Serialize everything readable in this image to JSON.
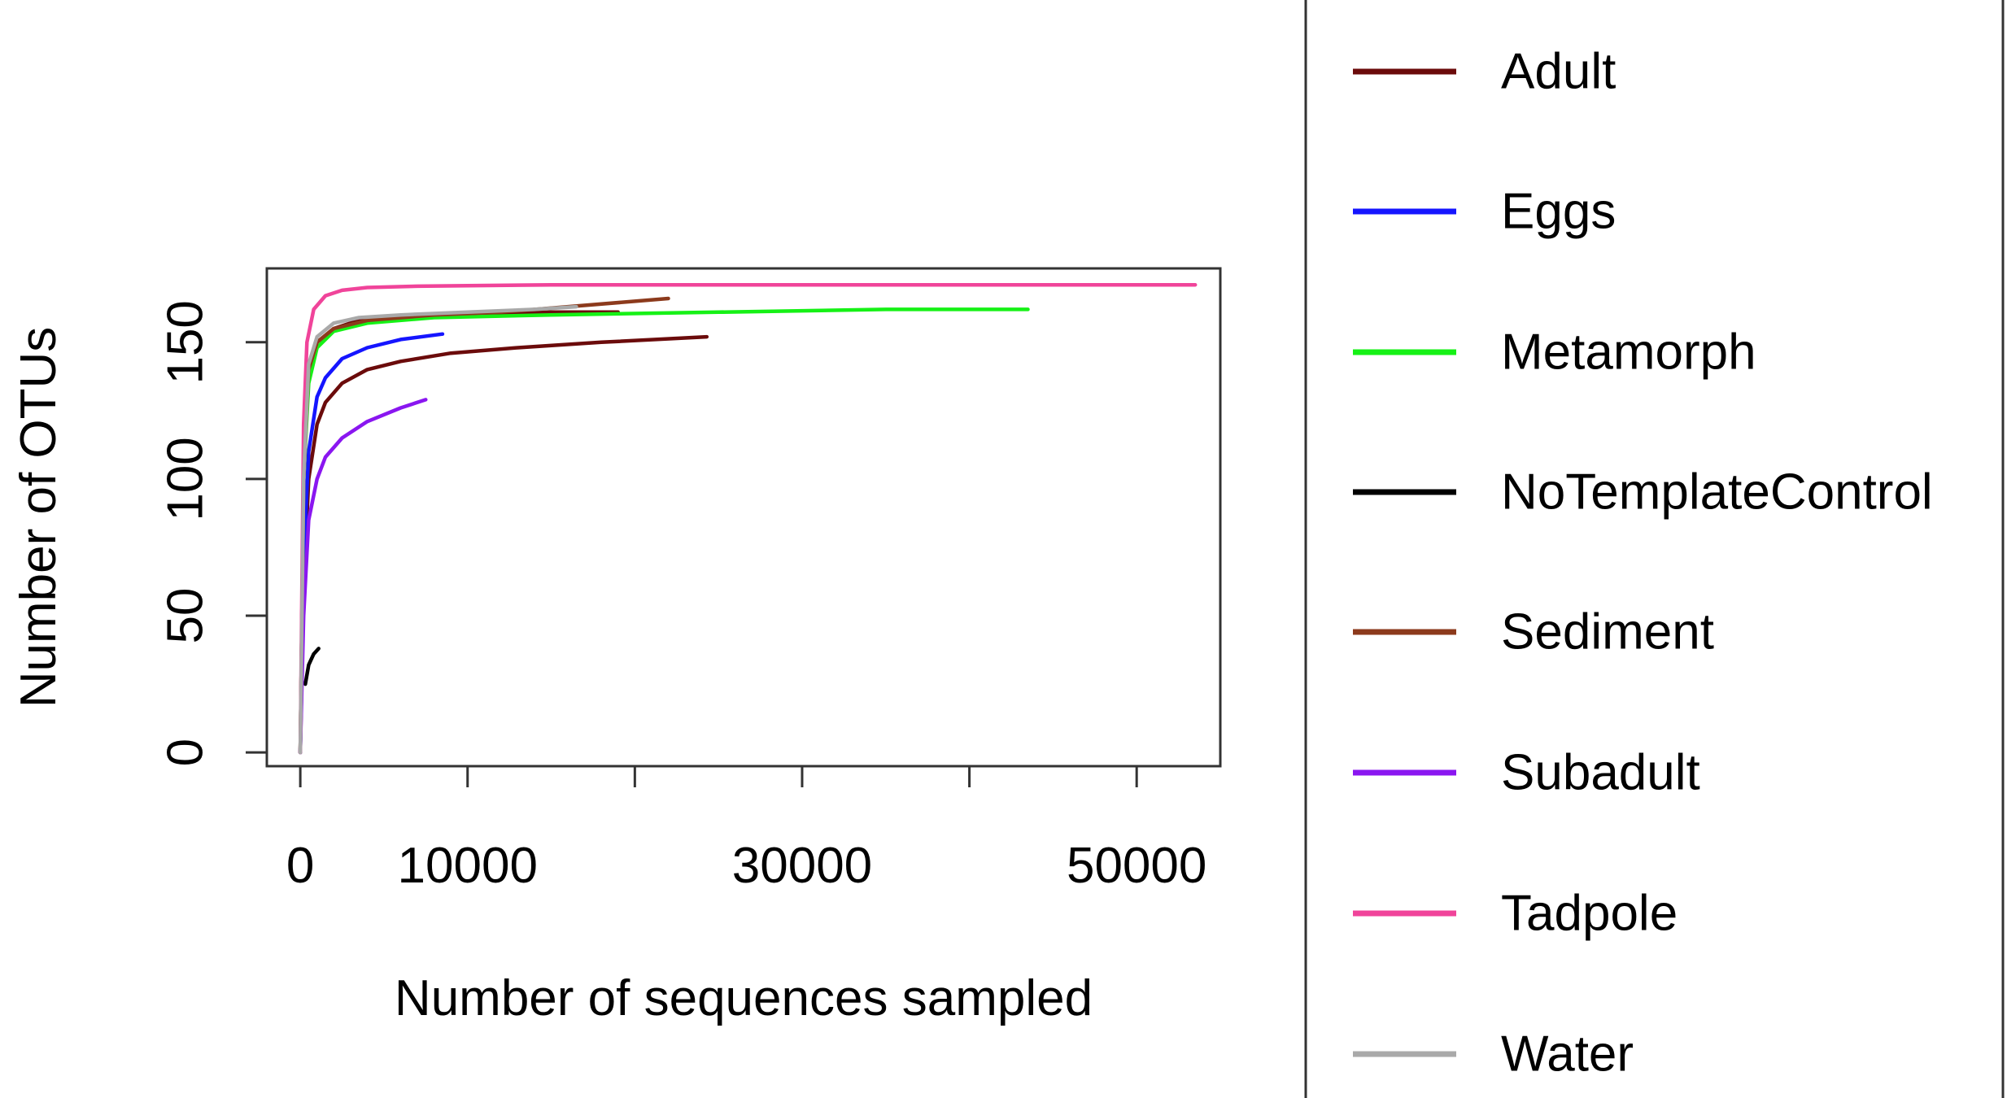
{
  "chart_data": {
    "type": "line",
    "title": "",
    "xlabel": "Number of sequences sampled",
    "ylabel": "Number of OTUs",
    "xlim": [
      -2000,
      55000
    ],
    "ylim": [
      -5,
      177
    ],
    "x_ticks": [
      0,
      10000,
      20000,
      30000,
      40000,
      50000
    ],
    "x_tick_labels": [
      "0",
      "10000",
      "",
      "30000",
      "",
      "50000"
    ],
    "y_ticks": [
      0,
      50,
      100,
      150
    ],
    "y_tick_labels": [
      "0",
      "50",
      "100",
      "150"
    ],
    "grid": false,
    "legend_placement": "right",
    "series": [
      {
        "name": "Adult",
        "color": "#6b0b0b",
        "x": [
          0,
          200,
          500,
          1000,
          1500,
          2500,
          4000,
          6000,
          9000,
          13000,
          18000,
          24300
        ],
        "y": [
          0,
          60,
          100,
          120,
          128,
          135,
          140,
          143,
          146,
          148,
          150,
          152
        ]
      },
      {
        "name": "Adult",
        "color": "#6b0b0b",
        "x": [
          0,
          200,
          500,
          1000,
          2000,
          3500,
          6000,
          10000,
          15000,
          19000
        ],
        "y": [
          0,
          100,
          140,
          150,
          155,
          158,
          159,
          160,
          161,
          161
        ]
      },
      {
        "name": "Eggs",
        "color": "#1515ff",
        "x": [
          0,
          200,
          500,
          1000,
          1500,
          2500,
          4000,
          6000,
          8500
        ],
        "y": [
          0,
          70,
          110,
          130,
          137,
          144,
          148,
          151,
          153
        ]
      },
      {
        "name": "Metamorph",
        "color": "#16f116",
        "x": [
          0,
          200,
          500,
          1000,
          2000,
          4000,
          8000,
          15000,
          25000,
          35000,
          43500
        ],
        "y": [
          0,
          100,
          135,
          148,
          154,
          157,
          159,
          160,
          161,
          162,
          162
        ]
      },
      {
        "name": "NoTemplateControl",
        "color": "#000000",
        "x": [
          300,
          500,
          800,
          1100
        ],
        "y": [
          25,
          32,
          36,
          38
        ]
      },
      {
        "name": "Sediment",
        "color": "#8c3a1c",
        "x": [
          0,
          200,
          500,
          1000,
          2000,
          4000,
          8000,
          12000,
          16000,
          20000,
          22000
        ],
        "y": [
          0,
          100,
          140,
          150,
          155,
          158,
          160,
          161,
          163,
          165,
          166
        ]
      },
      {
        "name": "Subadult",
        "color": "#8a16f0",
        "x": [
          0,
          200,
          500,
          1000,
          1500,
          2500,
          4000,
          6000,
          7500
        ],
        "y": [
          0,
          50,
          85,
          100,
          108,
          115,
          121,
          126,
          129
        ]
      },
      {
        "name": "Tadpole",
        "color": "#f0449a",
        "x": [
          0,
          200,
          400,
          800,
          1500,
          2500,
          4000,
          7000,
          15000,
          30000,
          45000,
          53500
        ],
        "y": [
          0,
          120,
          150,
          162,
          167,
          169,
          170,
          170.5,
          171,
          171,
          171,
          171
        ]
      },
      {
        "name": "Water",
        "color": "#a9a9a9",
        "x": [
          0,
          200,
          500,
          1000,
          2000,
          3500,
          6000,
          10000,
          14000,
          16500
        ],
        "y": [
          0,
          100,
          142,
          152,
          157,
          159,
          160,
          161,
          162,
          163
        ]
      }
    ],
    "legend": [
      {
        "name": "Adult",
        "color": "#6b0b0b"
      },
      {
        "name": "Eggs",
        "color": "#1515ff"
      },
      {
        "name": "Metamorph",
        "color": "#16f116"
      },
      {
        "name": "NoTemplateControl",
        "color": "#000000"
      },
      {
        "name": "Sediment",
        "color": "#8c3a1c"
      },
      {
        "name": "Subadult",
        "color": "#8a16f0"
      },
      {
        "name": "Tadpole",
        "color": "#f0449a"
      },
      {
        "name": "Water",
        "color": "#a9a9a9"
      }
    ]
  }
}
